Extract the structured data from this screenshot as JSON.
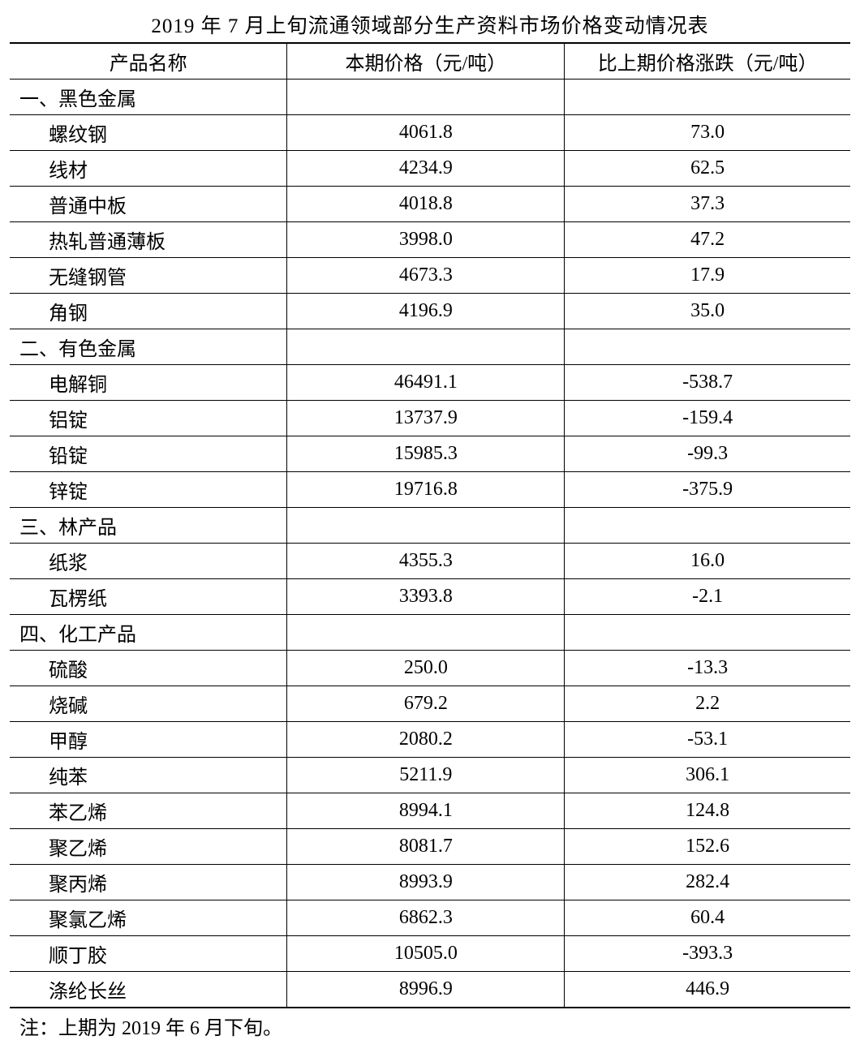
{
  "table": {
    "title": "2019 年 7 月上旬流通领域部分生产资料市场价格变动情况表",
    "columns": [
      "产品名称",
      "本期价格（元/吨）",
      "比上期价格涨跌（元/吨）"
    ],
    "column_widths": [
      "33%",
      "33%",
      "34%"
    ],
    "title_fontsize": 25,
    "body_fontsize": 24,
    "font_family": "SimSun",
    "text_color": "#000000",
    "background_color": "#ffffff",
    "border_color": "#000000",
    "header_border_top_width": 2,
    "header_border_bottom_width": 1,
    "row_border_width": 1,
    "rows": [
      {
        "type": "section",
        "name": "一、黑色金属",
        "price": "",
        "change": ""
      },
      {
        "type": "item",
        "name": "螺纹钢",
        "price": "4061.8",
        "change": "73.0"
      },
      {
        "type": "item",
        "name": "线材",
        "price": "4234.9",
        "change": "62.5"
      },
      {
        "type": "item",
        "name": "普通中板",
        "price": "4018.8",
        "change": "37.3"
      },
      {
        "type": "item",
        "name": "热轧普通薄板",
        "price": "3998.0",
        "change": "47.2"
      },
      {
        "type": "item",
        "name": "无缝钢管",
        "price": "4673.3",
        "change": "17.9"
      },
      {
        "type": "item",
        "name": "角钢",
        "price": "4196.9",
        "change": "35.0"
      },
      {
        "type": "section",
        "name": "二、有色金属",
        "price": "",
        "change": ""
      },
      {
        "type": "item",
        "name": "电解铜",
        "price": "46491.1",
        "change": "-538.7"
      },
      {
        "type": "item",
        "name": "铝锭",
        "price": "13737.9",
        "change": "-159.4"
      },
      {
        "type": "item",
        "name": "铅锭",
        "price": "15985.3",
        "change": "-99.3"
      },
      {
        "type": "item",
        "name": "锌锭",
        "price": "19716.8",
        "change": "-375.9"
      },
      {
        "type": "section",
        "name": "三、林产品",
        "price": "",
        "change": ""
      },
      {
        "type": "item",
        "name": "纸浆",
        "price": "4355.3",
        "change": "16.0"
      },
      {
        "type": "item",
        "name": "瓦楞纸",
        "price": "3393.8",
        "change": "-2.1"
      },
      {
        "type": "section",
        "name": "四、化工产品",
        "price": "",
        "change": ""
      },
      {
        "type": "item",
        "name": "硫酸",
        "price": "250.0",
        "change": "-13.3"
      },
      {
        "type": "item",
        "name": "烧碱",
        "price": "679.2",
        "change": "2.2"
      },
      {
        "type": "item",
        "name": "甲醇",
        "price": "2080.2",
        "change": "-53.1"
      },
      {
        "type": "item",
        "name": "纯苯",
        "price": "5211.9",
        "change": "306.1"
      },
      {
        "type": "item",
        "name": "苯乙烯",
        "price": "8994.1",
        "change": "124.8"
      },
      {
        "type": "item",
        "name": "聚乙烯",
        "price": "8081.7",
        "change": "152.6"
      },
      {
        "type": "item",
        "name": "聚丙烯",
        "price": "8993.9",
        "change": "282.4"
      },
      {
        "type": "item",
        "name": "聚氯乙烯",
        "price": "6862.3",
        "change": "60.4"
      },
      {
        "type": "item",
        "name": "顺丁胶",
        "price": "10505.0",
        "change": "-393.3"
      },
      {
        "type": "item",
        "name": "涤纶长丝",
        "price": "8996.9",
        "change": "446.9"
      }
    ],
    "footnote": "注：上期为 2019 年 6 月下旬。"
  }
}
